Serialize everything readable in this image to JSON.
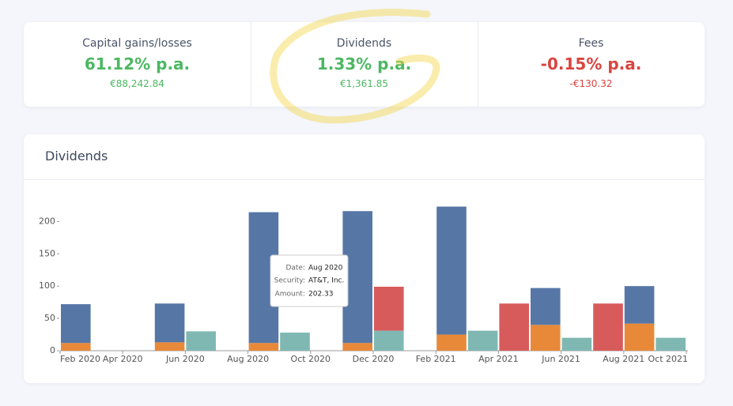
{
  "cards": [
    {
      "title": "Capital gains/losses",
      "rate": "61.12% p.a.",
      "amount": "€88,242.84"
    },
    {
      "title": "Dividends",
      "rate": "1.33% p.a.",
      "amount": "€1,361.85"
    },
    {
      "title": "Fees",
      "rate": "-0.15% p.a.",
      "amount": "-€130.32"
    }
  ],
  "chart_data": {
    "type": "bar",
    "title": "Dividends",
    "stacked": true,
    "categories": [
      "Feb 2020",
      null,
      "Apr 2020",
      null,
      "Jun 2020",
      null,
      "Aug 2020",
      null,
      "Oct 2020",
      null,
      "Dec 2020",
      null,
      "Feb 2021",
      null,
      "Apr 2021",
      null,
      "Jun 2021",
      null,
      "Aug 2021",
      null,
      "Oct 2021"
    ],
    "series": [
      {
        "color": "#e8893a",
        "values": [
          12,
          null,
          null,
          13,
          null,
          null,
          12,
          null,
          null,
          12,
          null,
          null,
          25,
          null,
          null,
          40,
          null,
          null,
          42,
          null,
          null
        ]
      },
      {
        "color": "#5677a6",
        "values": [
          60,
          null,
          null,
          60,
          null,
          null,
          202.33,
          null,
          null,
          204,
          null,
          null,
          198,
          null,
          null,
          57,
          null,
          null,
          58,
          null,
          null
        ]
      },
      {
        "color": "#7fb8b2",
        "values": [
          null,
          null,
          null,
          null,
          30,
          null,
          null,
          28,
          null,
          null,
          31,
          null,
          null,
          31,
          null,
          null,
          20,
          null,
          null,
          20,
          null
        ]
      },
      {
        "color": "#d85b5b",
        "values": [
          null,
          null,
          null,
          null,
          null,
          null,
          null,
          null,
          null,
          null,
          68,
          null,
          null,
          null,
          73,
          null,
          null,
          73,
          null,
          null,
          null
        ]
      }
    ],
    "ylim": [
      0,
      220
    ],
    "yticks": [
      0,
      50,
      100,
      150,
      200
    ],
    "tooltip": {
      "date_label": "Date:",
      "security_label": "Security:",
      "security": "AT&T, Inc.",
      "amount_label": "Amount:"
    }
  }
}
